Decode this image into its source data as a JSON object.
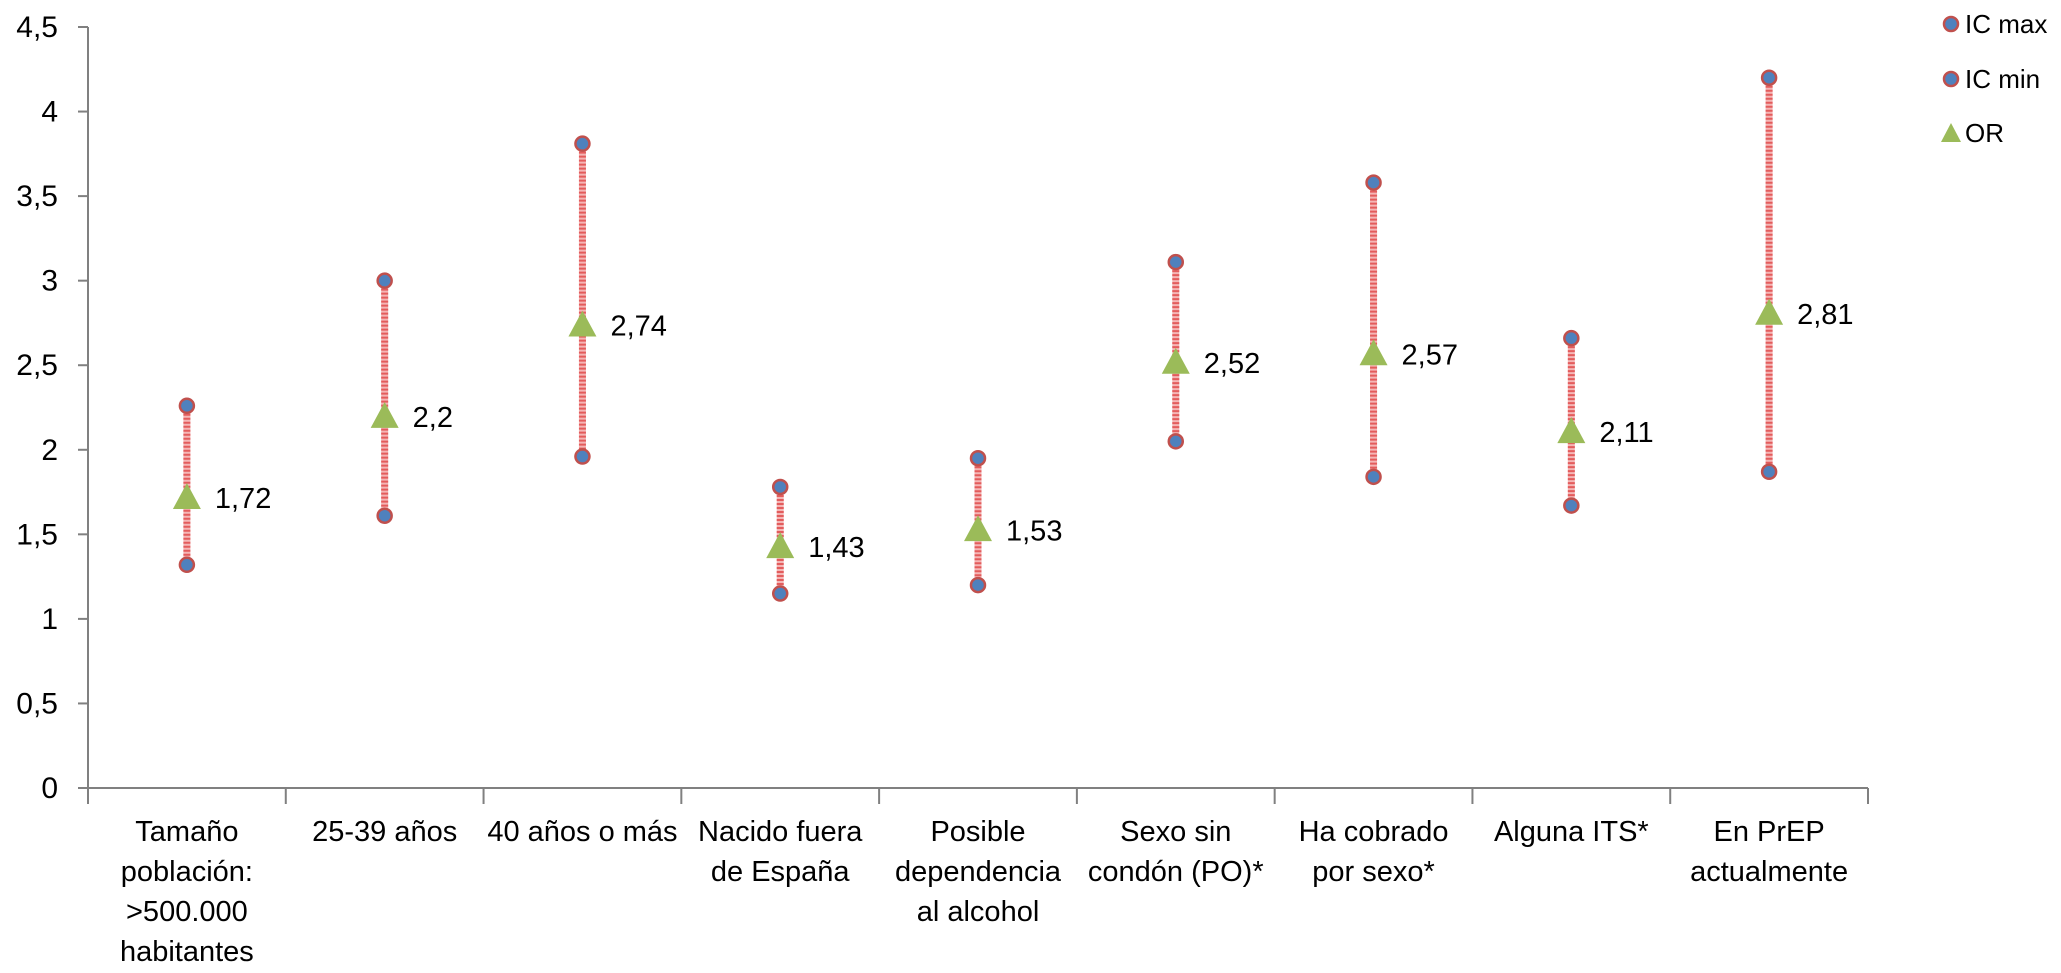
{
  "chart_data": {
    "type": "scatter",
    "categories": [
      [
        "Tamaño",
        "población:",
        ">500.000",
        "habitantes"
      ],
      [
        "25-39 años"
      ],
      [
        "40 años o más"
      ],
      [
        "Nacido fuera",
        "de España"
      ],
      [
        "Posible",
        "dependencia",
        "al alcohol"
      ],
      [
        "Sexo sin",
        "condón (PO)*"
      ],
      [
        "Ha cobrado",
        "por sexo*"
      ],
      [
        "Alguna ITS*"
      ],
      [
        "En PrEP",
        "actualmente"
      ]
    ],
    "series": [
      {
        "name": "IC max",
        "values": [
          2.26,
          3.0,
          3.81,
          1.78,
          1.95,
          3.11,
          3.58,
          2.66,
          4.2
        ]
      },
      {
        "name": "IC min",
        "values": [
          1.32,
          1.61,
          1.96,
          1.15,
          1.2,
          2.05,
          1.84,
          1.67,
          1.87
        ]
      },
      {
        "name": "OR",
        "values": [
          1.72,
          2.2,
          2.74,
          1.43,
          1.53,
          2.52,
          2.57,
          2.11,
          2.81
        ]
      }
    ],
    "data_labels": [
      "1,72",
      "2,2",
      "2,74",
      "1,43",
      "1,53",
      "2,52",
      "2,57",
      "2,11",
      "2,81"
    ],
    "y_ticks": [
      "0",
      "0,5",
      "1",
      "1,5",
      "2",
      "2,5",
      "3",
      "3,5",
      "4",
      "4,5"
    ],
    "ylim": [
      0,
      4.5
    ],
    "grid": false,
    "legend_position": "top-right",
    "colors": {
      "ic_marker_fill": "#4f81bd",
      "ic_marker_stroke": "#c0504d",
      "or_marker": "#9bbb59",
      "range_line": "#e35c5c",
      "axis": "#808080"
    }
  }
}
